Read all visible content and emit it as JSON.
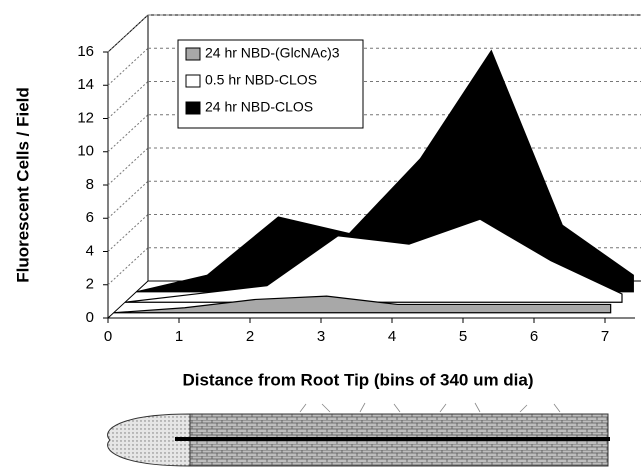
{
  "chart_data": {
    "type": "area3d",
    "y_label": "Fluorescent Cells / Field",
    "x_label": "Distance from Root Tip (bins of 340 um dia)",
    "x": [
      0,
      1,
      2,
      3,
      4,
      5,
      6,
      7
    ],
    "xlim": [
      0,
      7
    ],
    "xticks": [
      0,
      1,
      2,
      3,
      4,
      5,
      6,
      7
    ],
    "ylim": [
      0,
      16
    ],
    "yticks": [
      0,
      2,
      4,
      6,
      8,
      10,
      12,
      14,
      16
    ],
    "grid": true,
    "legend": "upper left",
    "series": [
      {
        "name": "24 hr NBD-(GlcNAc)3",
        "color": "#a8a8a8",
        "values": [
          0,
          0.3,
          0.8,
          1,
          0.5,
          0.5,
          0.5,
          0.5
        ]
      },
      {
        "name": "0.5 hr NBD-CLOS",
        "color": "#ffffff",
        "values": [
          0,
          0.5,
          1,
          4,
          3.5,
          5,
          2.5,
          0.5
        ]
      },
      {
        "name": "24 hr NBD-CLOS",
        "color": "#000000",
        "values": [
          0,
          1,
          4.5,
          3.5,
          8,
          14.5,
          4,
          1
        ]
      }
    ]
  }
}
